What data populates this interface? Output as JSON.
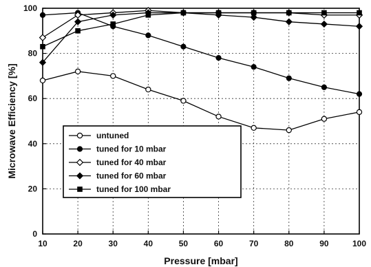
{
  "chart_data": {
    "type": "line",
    "title": "",
    "xlabel": "Pressure [mbar]",
    "ylabel": "Microwave Efficiency [%]",
    "xlim": [
      10,
      100
    ],
    "ylim": [
      0,
      100
    ],
    "xticks": [
      10,
      20,
      30,
      40,
      50,
      60,
      70,
      80,
      90,
      100
    ],
    "yticks": [
      0,
      20,
      40,
      60,
      80,
      100
    ],
    "grid": true,
    "legend_position": "lower-left",
    "x": [
      10,
      20,
      30,
      40,
      50,
      60,
      70,
      80,
      90,
      100
    ],
    "series": [
      {
        "name": "untuned",
        "marker": "circle-open",
        "values": [
          68,
          72,
          70,
          64,
          59,
          52,
          47,
          46,
          51,
          54
        ]
      },
      {
        "name": "tuned for 10 mbar",
        "marker": "circle-filled",
        "values": [
          97,
          98,
          92,
          88,
          83,
          78,
          74,
          69,
          65,
          62
        ]
      },
      {
        "name": "tuned for 40 mbar",
        "marker": "diamond-open",
        "values": [
          87,
          97,
          98,
          99,
          98,
          98,
          98,
          98,
          97,
          97
        ]
      },
      {
        "name": "tuned for 60 mbar",
        "marker": "diamond-filled",
        "values": [
          76,
          94,
          97,
          98,
          98,
          97,
          96,
          94,
          93,
          92
        ]
      },
      {
        "name": "tuned for 100 mbar",
        "marker": "square-filled",
        "values": [
          83,
          90,
          93,
          97,
          98,
          98,
          98,
          98,
          98,
          98
        ]
      }
    ]
  }
}
